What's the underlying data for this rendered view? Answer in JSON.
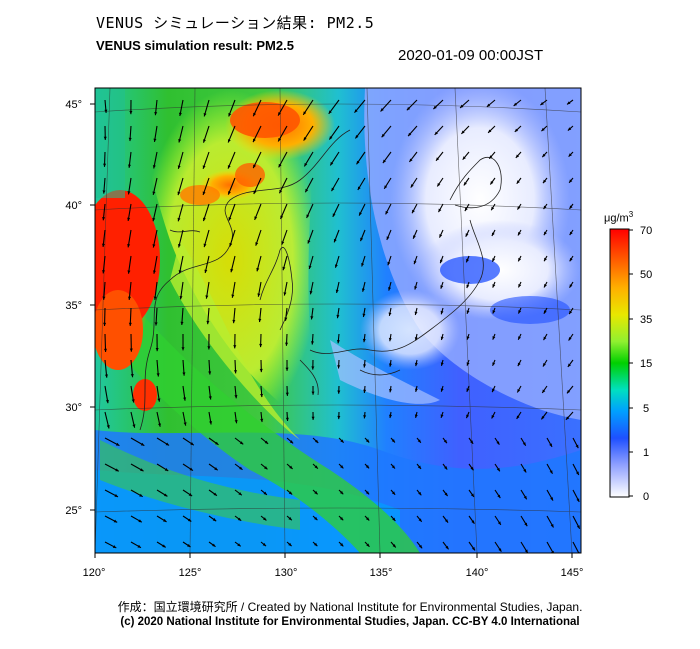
{
  "header": {
    "title_jp": "VENUS シミュレーション結果: PM2.5",
    "title_en": "VENUS simulation result: PM2.5",
    "timestamp": "2020-01-09 00:00JST"
  },
  "map": {
    "x_ticks": [
      "120°",
      "125°",
      "130°",
      "135°",
      "140°",
      "145°"
    ],
    "y_ticks": [
      "45°",
      "40°",
      "35°",
      "30°",
      "25°"
    ],
    "lon_range": [
      120,
      145
    ],
    "lat_range": [
      23,
      46.5
    ]
  },
  "colorbar": {
    "unit": "μg/m",
    "unit_sup": "3",
    "ticks": [
      "70",
      "50",
      "35",
      "15",
      "5",
      "1",
      "0"
    ],
    "colors": [
      "#ff0000",
      "#ff8c00",
      "#ffd700",
      "#adff2f",
      "#00c000",
      "#00e5c0",
      "#00b0ff",
      "#1e5fff",
      "#8fa8ff",
      "#ffffff"
    ]
  },
  "footer": {
    "credit_line1": "作成：国立環境研究所 / Created by National Institute for Environmental Studies, Japan.",
    "credit_line2": "(c) 2020 National Institute for Environmental Studies, Japan. CC-BY 4.0 International"
  }
}
